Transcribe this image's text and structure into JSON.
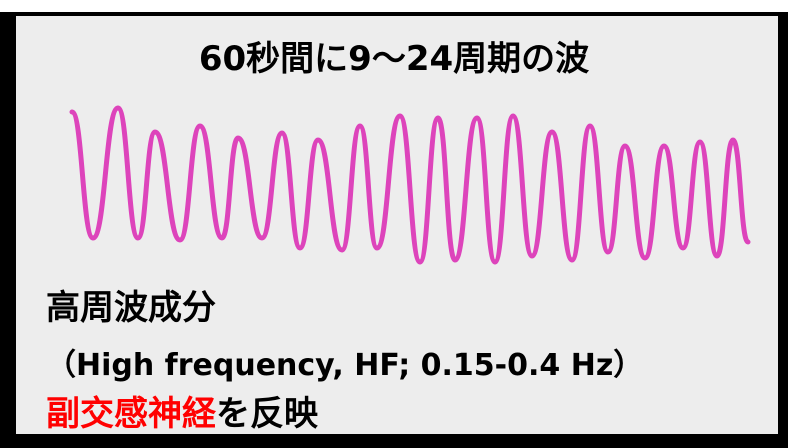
{
  "title": "60秒間に9〜24周期の波",
  "label_line1": "高周波成分",
  "label_line2": "（High frequency, HF; 0.15-0.4 Hz）",
  "label_line3_highlight": "副交感神経",
  "label_line3_rest": "を反映",
  "colors": {
    "wave": "#dd44bb",
    "highlight": "#ff0000",
    "panel": "#ededed",
    "border": "#000000"
  }
}
